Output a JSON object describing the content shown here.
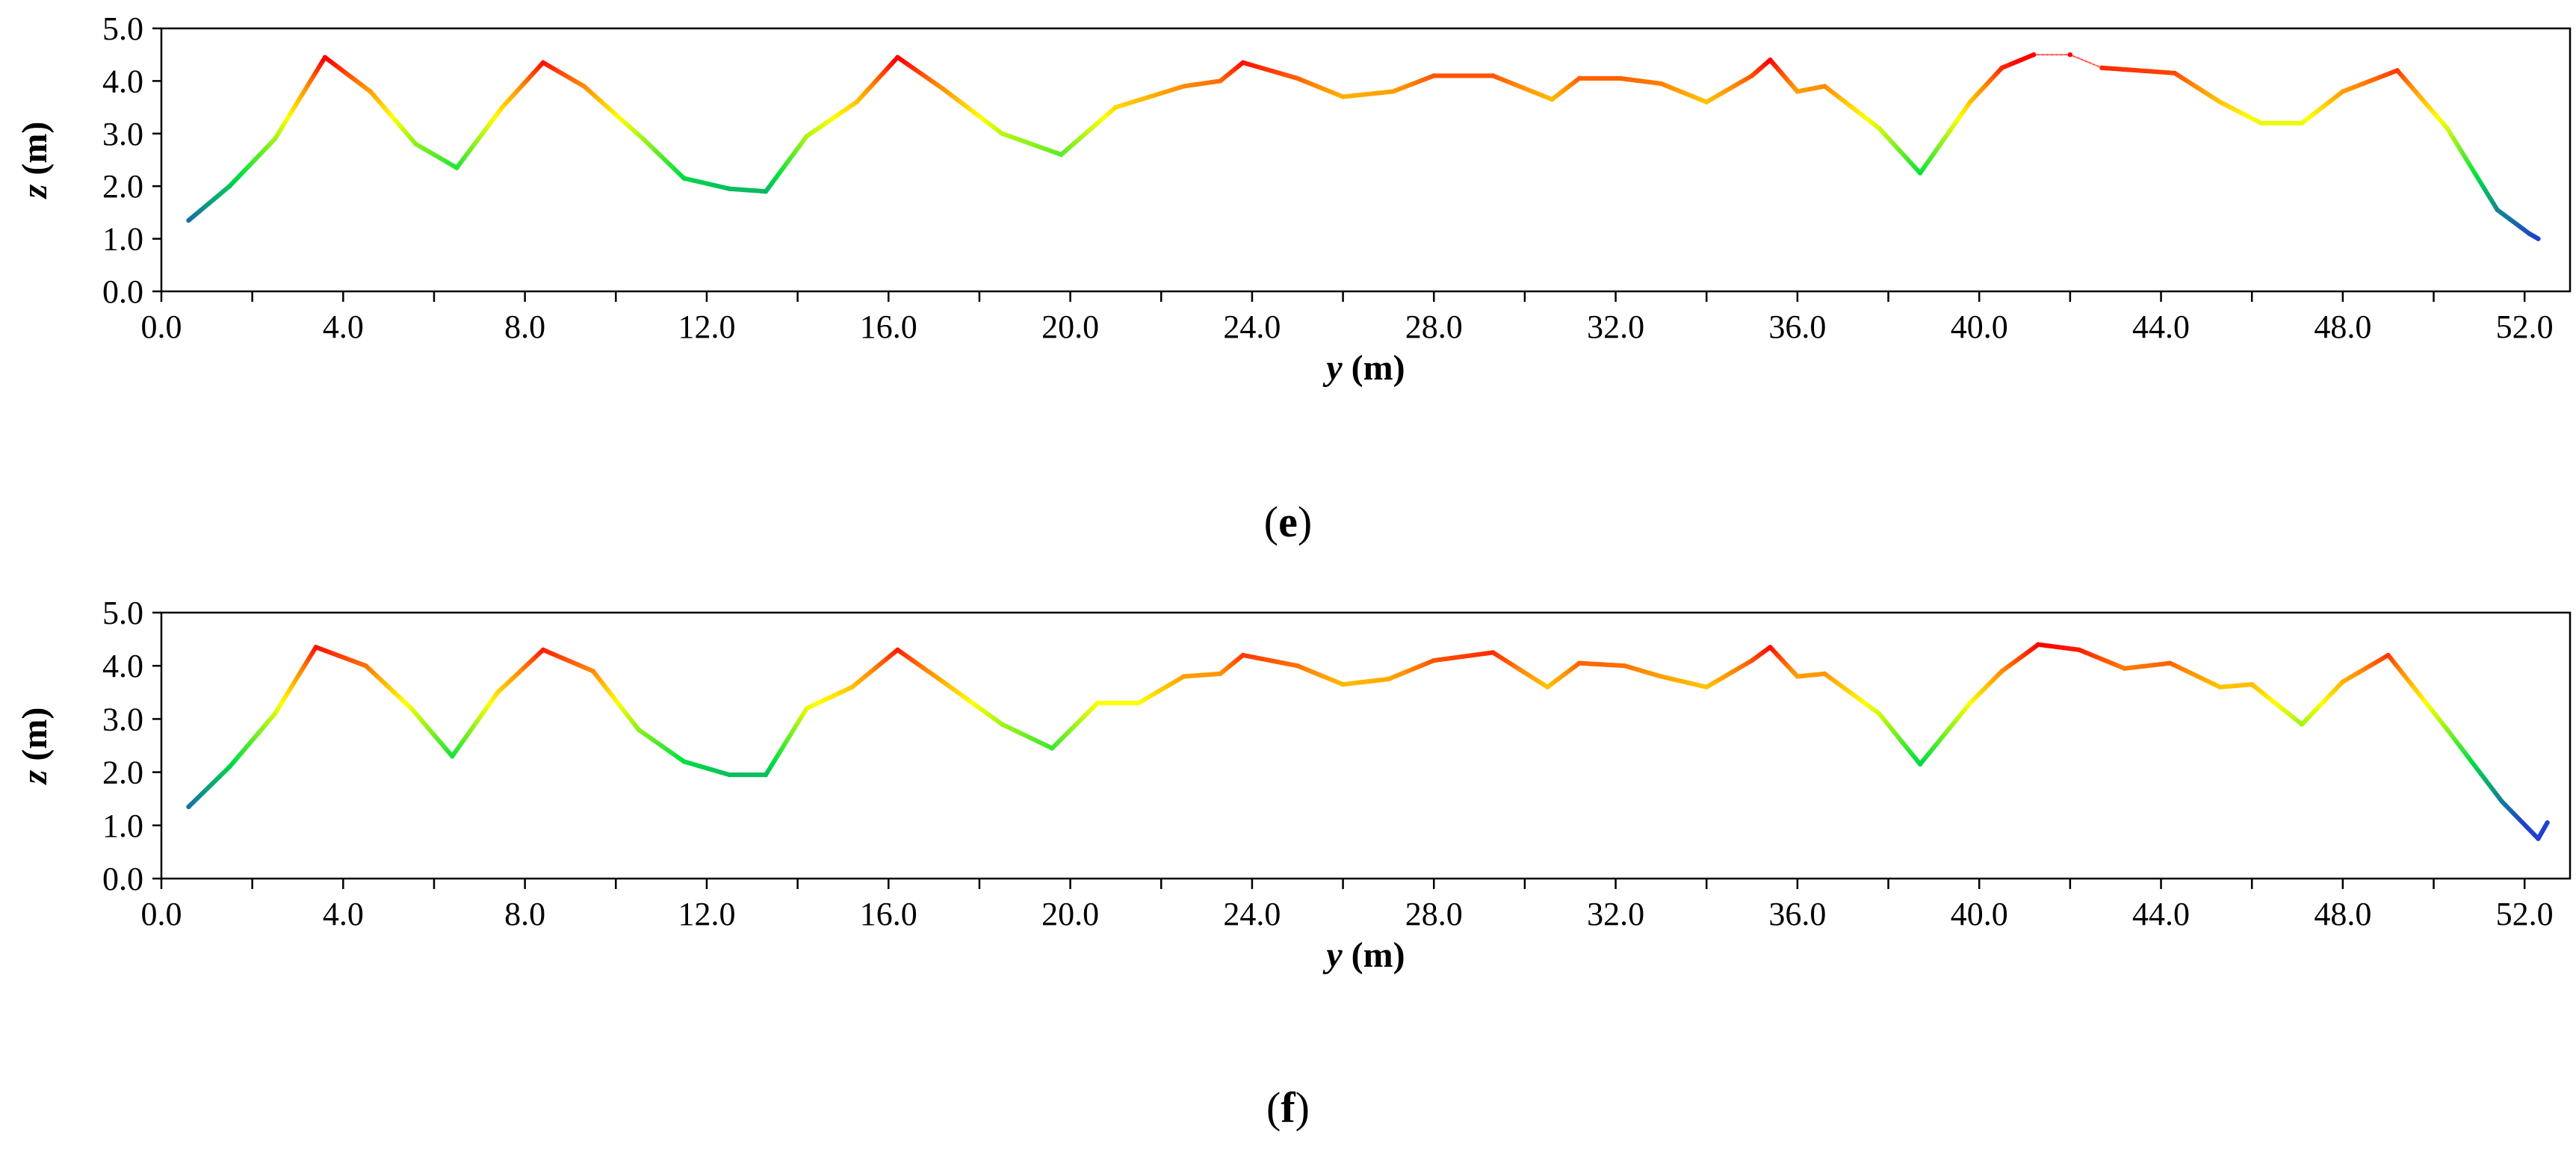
{
  "colormap": {
    "low": "#2040d0",
    "mid_low": "#00e040",
    "mid": "#ffff00",
    "mid_high": "#ff8c00",
    "high": "#ff0000"
  },
  "chart_data": [
    {
      "type": "scatter",
      "panel_label_open": "(",
      "panel_label_letter": "e",
      "panel_label_close": ")",
      "xlabel_var": "y",
      "xlabel_unit": " (m)",
      "ylabel_var": "z",
      "ylabel_unit": " (m)",
      "xlim": [
        0,
        53
      ],
      "ylim": [
        0,
        5
      ],
      "xticks": [
        "0.0",
        "4.0",
        "8.0",
        "12.0",
        "16.0",
        "20.0",
        "24.0",
        "28.0",
        "32.0",
        "36.0",
        "40.0",
        "44.0",
        "48.0",
        "52.0"
      ],
      "yticks": [
        "0.0",
        "1.0",
        "2.0",
        "3.0",
        "4.0",
        "5.0"
      ],
      "x": [
        0.6,
        1.5,
        2.5,
        3.6,
        4.6,
        5.6,
        6.5,
        7.5,
        8.4,
        9.3,
        10.6,
        11.5,
        12.5,
        13.3,
        14.2,
        15.3,
        16.2,
        17.2,
        18.5,
        19.8,
        21,
        22.5,
        23.3,
        23.8,
        25,
        26,
        27.1,
        28,
        29.3,
        30.6,
        31.2,
        32.1,
        33,
        34,
        35,
        35.4,
        36,
        36.6,
        37.8,
        38.7,
        39.8,
        40.5,
        41.2,
        42,
        42.7,
        44.3,
        45.3,
        46.2,
        47.1,
        48,
        49.2,
        50.3,
        51.4,
        52.1,
        52.3
      ],
      "z": [
        1.35,
        2.0,
        2.9,
        4.45,
        3.8,
        2.8,
        2.35,
        3.5,
        4.35,
        3.9,
        2.9,
        2.15,
        1.95,
        1.9,
        2.95,
        3.6,
        4.45,
        3.85,
        3.0,
        2.6,
        3.5,
        3.9,
        4.0,
        4.35,
        4.05,
        3.7,
        3.8,
        4.1,
        4.1,
        3.65,
        4.05,
        4.05,
        3.95,
        3.6,
        4.1,
        4.4,
        3.8,
        3.9,
        3.1,
        2.25,
        3.6,
        4.25,
        4.5,
        4.5,
        4.25,
        4.15,
        3.6,
        3.2,
        3.2,
        3.8,
        4.2,
        3.1,
        1.55,
        1.1,
        1.0
      ],
      "gaps_after_index": [
        42,
        43
      ]
    },
    {
      "type": "scatter",
      "panel_label_open": "(",
      "panel_label_letter": "f",
      "panel_label_close": ")",
      "xlabel_var": "y",
      "xlabel_unit": " (m)",
      "ylabel_var": "z",
      "ylabel_unit": " (m)",
      "xlim": [
        0,
        53
      ],
      "ylim": [
        0,
        5
      ],
      "xticks": [
        "0.0",
        "4.0",
        "8.0",
        "12.0",
        "16.0",
        "20.0",
        "24.0",
        "28.0",
        "32.0",
        "36.0",
        "40.0",
        "44.0",
        "48.0",
        "52.0"
      ],
      "yticks": [
        "0.0",
        "1.0",
        "2.0",
        "3.0",
        "4.0",
        "5.0"
      ],
      "x": [
        0.6,
        1.5,
        2.5,
        3.4,
        4.5,
        5.5,
        6.4,
        7.4,
        8.4,
        9.5,
        10.5,
        11.5,
        12.5,
        13.3,
        14.2,
        15.2,
        16.2,
        17.2,
        18.5,
        19.6,
        20.6,
        21.5,
        22.5,
        23.3,
        23.8,
        25,
        26,
        27,
        28,
        29.3,
        30.5,
        31.2,
        32.2,
        33,
        34,
        35,
        35.4,
        36,
        36.6,
        37.8,
        38.7,
        39.8,
        40.5,
        41.3,
        42.2,
        43.2,
        44.2,
        45.3,
        46,
        47.1,
        48,
        49,
        50.3,
        51.5,
        52.3,
        52.5
      ],
      "z": [
        1.35,
        2.1,
        3.1,
        4.35,
        4.0,
        3.2,
        2.3,
        3.5,
        4.3,
        3.9,
        2.8,
        2.2,
        1.95,
        1.95,
        3.2,
        3.6,
        4.3,
        3.7,
        2.9,
        2.45,
        3.3,
        3.3,
        3.8,
        3.85,
        4.2,
        4.0,
        3.65,
        3.75,
        4.1,
        4.25,
        3.6,
        4.05,
        4.0,
        3.8,
        3.6,
        4.1,
        4.35,
        3.8,
        3.85,
        3.1,
        2.15,
        3.3,
        3.9,
        4.4,
        4.3,
        3.95,
        4.05,
        3.6,
        3.65,
        2.9,
        3.7,
        4.2,
        2.8,
        1.45,
        0.75,
        1.05
      ],
      "gaps_after_index": []
    }
  ]
}
